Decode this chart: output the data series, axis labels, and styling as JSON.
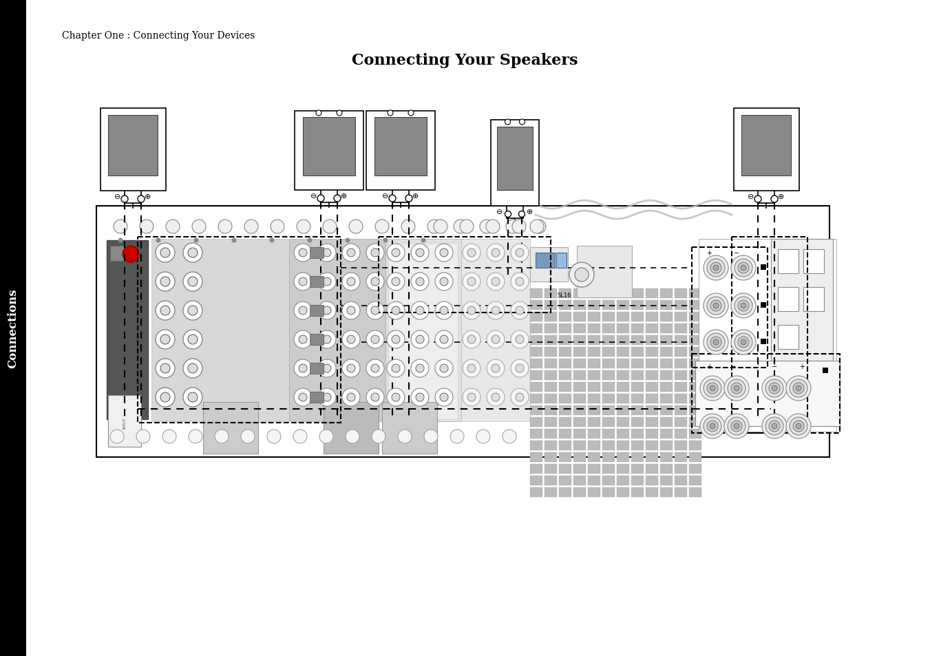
{
  "title": "Connecting Your Speakers",
  "chapter_text": "Chapter One : Connecting Your Devices",
  "sidebar_text": "Connections",
  "bg_color": "#ffffff",
  "sidebar_bg": "#000000",
  "sidebar_text_color": "#ffffff",
  "speaker_fill": "#888888",
  "binding_post_outer": "#dddddd",
  "binding_post_inner": "#aaaaaa",
  "grid_color": "#c8c8c8",
  "dark_panel": "#555555",
  "med_panel": "#bbbbbb",
  "light_panel": "#d8d8d8",
  "lighter_panel": "#e8e8e8"
}
